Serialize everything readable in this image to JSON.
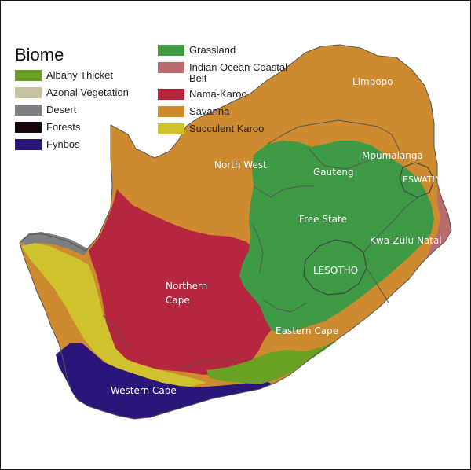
{
  "legend": {
    "title": "Biome",
    "col1": [
      {
        "label": "Albany Thicket",
        "color": "#6aa125"
      },
      {
        "label": "Azonal Vegetation",
        "color": "#c6c3a3"
      },
      {
        "label": "Desert",
        "color": "#7b7e82"
      },
      {
        "label": "Forests",
        "color": "#17050f"
      },
      {
        "label": "Fynbos",
        "color": "#2b157a"
      }
    ],
    "col2": [
      {
        "label": "Grassland",
        "color": "#3f9a45"
      },
      {
        "label": "Indian Ocean Coastal Belt",
        "color": "#b96c70"
      },
      {
        "label": "Nama-Karoo",
        "color": "#b6263e"
      },
      {
        "label": "Savanna",
        "color": "#cd8a2e"
      },
      {
        "label": "Succulent Karoo",
        "color": "#cfc22c"
      }
    ]
  },
  "provinces": {
    "limpopo": "Limpopo",
    "mpumalanga": "Mpumalanga",
    "north_west": "North West",
    "gauteng": "Gauteng",
    "free_state": "Free State",
    "kwazulu_natal": "Kwa-Zulu Natal",
    "northern_cape_1": "Northern",
    "northern_cape_2": "Cape",
    "eastern_cape": "Eastern Cape",
    "western_cape": "Western Cape"
  },
  "countries": {
    "eswatini": "ESWATINI",
    "lesotho": "LESOTHO"
  }
}
